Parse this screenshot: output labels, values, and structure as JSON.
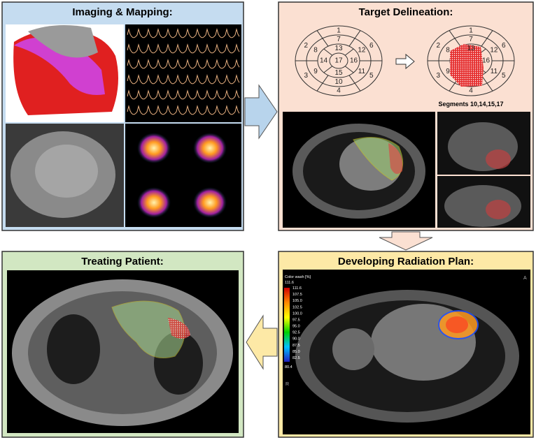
{
  "imaging_mapping": {
    "title": "Imaging & Mapping:"
  },
  "target_delineation": {
    "title": "Target Delineation:",
    "bullseye_before": [
      "1",
      "2",
      "3",
      "4",
      "5",
      "6",
      "7",
      "8",
      "9",
      "10",
      "11",
      "12",
      "13",
      "14",
      "15",
      "16",
      "17"
    ],
    "bullseye_after_visible": [
      "1",
      "2",
      "3",
      "4",
      "5",
      "6",
      "7",
      "8",
      "9",
      "11",
      "12",
      "13",
      "16"
    ],
    "caption": "Segments 10,14,15,17"
  },
  "radiation_plan": {
    "title": "Developing Radiation Plan:",
    "colorbar_title": "Color wash [%]",
    "colorbar_max": "111.6",
    "colorbar_labels": [
      "111.6",
      "107.5",
      "105.0",
      "102.5",
      "100.0",
      "97.5",
      "95.0",
      "92.5",
      "90.0",
      "87.5",
      "85.0",
      "82.5"
    ],
    "colorbar_min": "80.4",
    "orientation_top": "A",
    "orientation_left": "R"
  },
  "treating_patient": {
    "title": "Treating Patient:"
  }
}
